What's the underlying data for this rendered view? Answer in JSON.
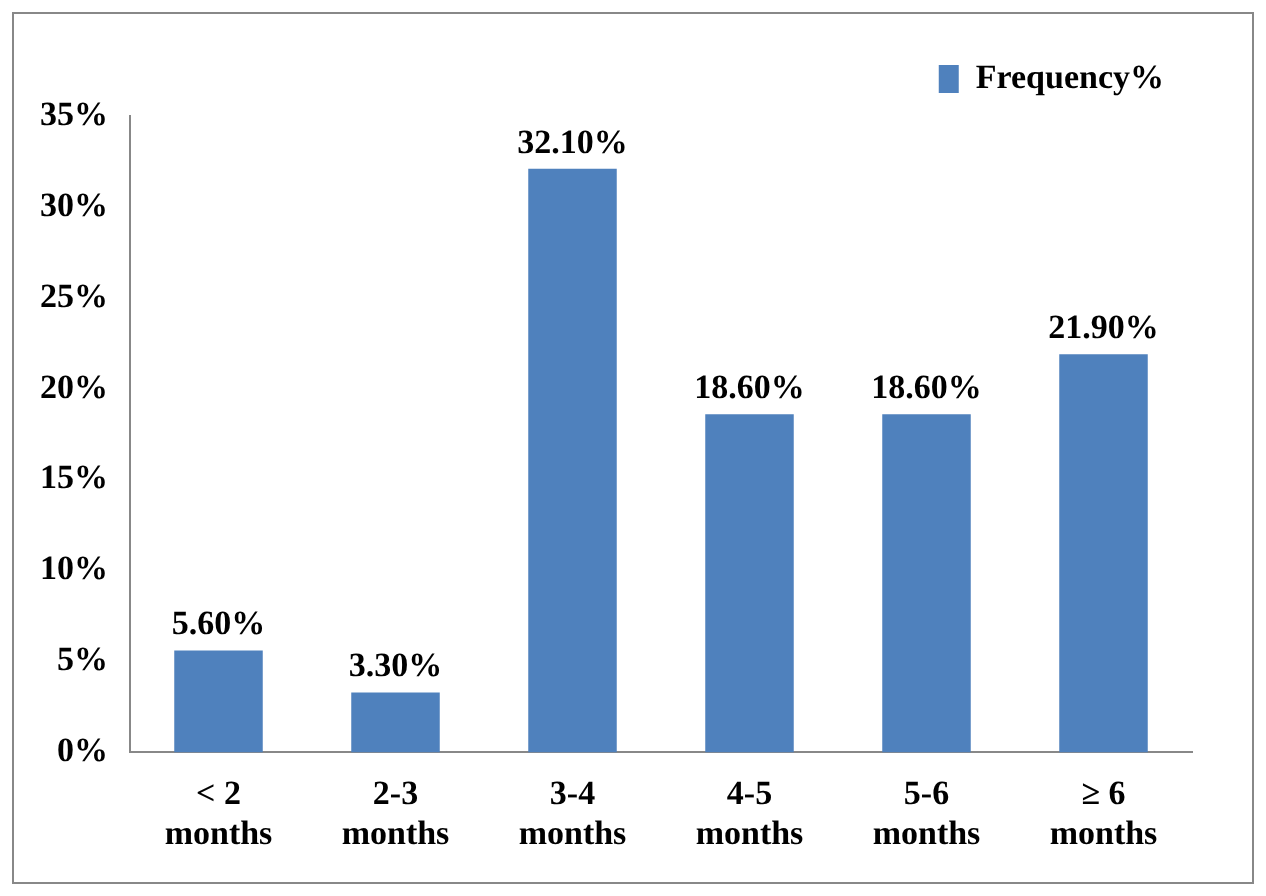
{
  "chart_data": {
    "type": "bar",
    "categories": [
      "< 2 months",
      "2-3 months",
      "3-4 months",
      "4-5 months",
      "5-6 months",
      "≥ 6 months"
    ],
    "series": [
      {
        "name": "Frequency%",
        "color": "#4f81bd",
        "values": [
          5.6,
          3.3,
          32.1,
          18.6,
          18.6,
          21.9
        ],
        "value_labels": [
          "5.60%",
          "3.30%",
          "32.10%",
          "18.60%",
          "18.60%",
          "21.90%"
        ]
      }
    ],
    "ylim": [
      0,
      35
    ],
    "yticks": [
      {
        "value": 0,
        "label": "0%"
      },
      {
        "value": 5,
        "label": "5%"
      },
      {
        "value": 10,
        "label": "10%"
      },
      {
        "value": 15,
        "label": "15%"
      },
      {
        "value": 20,
        "label": "20%"
      },
      {
        "value": 25,
        "label": "25%"
      },
      {
        "value": 30,
        "label": "30%"
      },
      {
        "value": 35,
        "label": "35%"
      }
    ],
    "grid": false,
    "legend": "top right"
  }
}
